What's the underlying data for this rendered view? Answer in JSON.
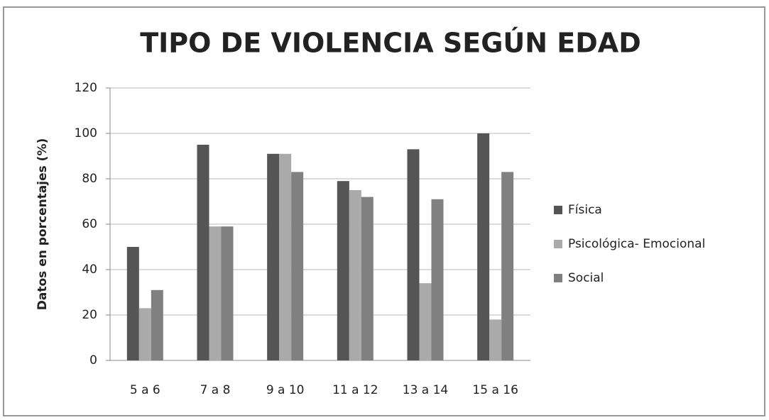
{
  "chart_data": {
    "type": "bar",
    "title": "TIPO DE VIOLENCIA SEGÚN EDAD",
    "y_label": "Datos en porcentajes (%)",
    "categories": [
      "5 a 6",
      "7 a 8",
      "9 a 10",
      "11 a 12",
      "13 a 14",
      "15 a 16"
    ],
    "series": [
      {
        "name": "Física",
        "color": "#555555",
        "values": [
          50,
          95,
          91,
          79,
          93,
          100
        ]
      },
      {
        "name": "Psicológica- Emocional",
        "color": "#aaaaaa",
        "values": [
          23,
          59,
          91,
          75,
          34,
          18
        ]
      },
      {
        "name": "Social",
        "color": "#808080",
        "values": [
          31,
          59,
          83,
          72,
          71,
          83
        ]
      }
    ],
    "ylim": [
      0,
      120
    ],
    "yticks": [
      0,
      20,
      40,
      60,
      80,
      100,
      120
    ],
    "grid": true,
    "legend": "right"
  }
}
